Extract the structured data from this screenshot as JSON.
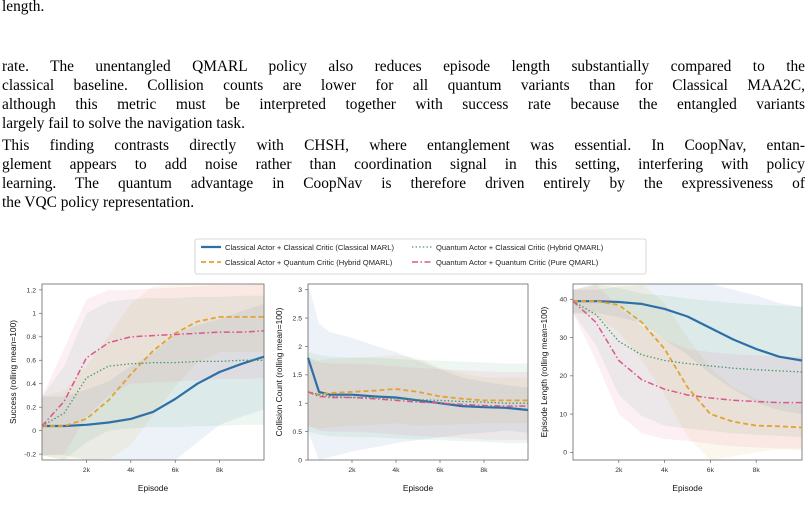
{
  "paragraphs": {
    "p0": [
      "length."
    ],
    "p1": [
      "rate. The unentangled QMARL policy also reduces episode length substantially compared to the",
      "classical baseline. Collision counts are lower for all quantum variants than for Classical MAA2C,",
      "although this metric must be interpreted together with success rate because the entangled variants",
      "largely fail to solve the navigation task."
    ],
    "p2": [
      "This finding contrasts directly with CHSH, where entanglement was essential. In CoopNav, entan-",
      "glement appears to add noise rather than coordination signal in this setting, interfering with policy",
      "learning. The quantum advantage in CoopNav is therefore driven entirely by the expressiveness of",
      "the VQC policy representation."
    ]
  },
  "legend": [
    {
      "label": "Classical Actor + Classical Critic (Classical MARL)",
      "color": "#2f6fa8",
      "dash": "solid"
    },
    {
      "label": "Classical Actor + Quantum Critic (Hybrid QMARL)",
      "color": "#e3a232",
      "dash": "dashed"
    },
    {
      "label": "Quantum Actor + Classical Critic (Hybrid QMARL)",
      "color": "#3f9a63",
      "dash": "dotted"
    },
    {
      "label": "Quantum Actor + Quantum Critic (Pure QMARL)",
      "color": "#d9588e",
      "dash": "dashdot"
    }
  ],
  "chart_data": [
    {
      "type": "line",
      "xlabel": "Episode",
      "ylabel": "Success (rolling mean=100)",
      "xlim": [
        0,
        10000
      ],
      "ylim": [
        -0.25,
        1.25
      ],
      "xticks": [
        2000,
        4000,
        6000,
        8000
      ],
      "xtick_labels": [
        "2k",
        "4k",
        "6k",
        "8k"
      ],
      "yticks": [
        -0.2,
        0,
        0.2,
        0.4,
        0.6,
        0.8,
        1,
        1.2
      ],
      "ytick_labels": [
        "-0.2",
        "0",
        "0.2",
        "0.4",
        "0.6",
        "0.8",
        "1",
        "1.2"
      ],
      "series": [
        {
          "name": "Classical Actor + Classical Critic (Classical MARL)",
          "x": [
            0,
            1000,
            2000,
            3000,
            4000,
            5000,
            6000,
            7000,
            8000,
            9000,
            10000
          ],
          "y": [
            0.04,
            0.04,
            0.05,
            0.07,
            0.1,
            0.16,
            0.27,
            0.4,
            0.5,
            0.57,
            0.63
          ],
          "band": [
            0.25,
            0.25,
            0.3,
            0.35,
            0.45,
            0.5,
            0.55,
            0.5,
            0.45,
            0.45,
            0.45
          ]
        },
        {
          "name": "Classical Actor + Quantum Critic (Hybrid QMARL)",
          "x": [
            0,
            1000,
            2000,
            3000,
            4000,
            5000,
            6000,
            7000,
            8000,
            9000,
            10000
          ],
          "y": [
            0.04,
            0.04,
            0.1,
            0.26,
            0.48,
            0.68,
            0.83,
            0.93,
            0.97,
            0.97,
            0.97
          ],
          "band": [
            0.25,
            0.3,
            0.45,
            0.55,
            0.6,
            0.55,
            0.45,
            0.35,
            0.3,
            0.3,
            0.3
          ]
        },
        {
          "name": "Quantum Actor + Classical Critic (Hybrid QMARL)",
          "x": [
            0,
            1000,
            2000,
            3000,
            4000,
            5000,
            6000,
            7000,
            8000,
            9000,
            10000
          ],
          "y": [
            0.04,
            0.15,
            0.45,
            0.55,
            0.57,
            0.58,
            0.58,
            0.59,
            0.59,
            0.6,
            0.6
          ],
          "band": [
            0.25,
            0.4,
            0.55,
            0.55,
            0.55,
            0.55,
            0.55,
            0.55,
            0.55,
            0.55,
            0.55
          ]
        },
        {
          "name": "Quantum Actor + Quantum Critic (Pure QMARL)",
          "x": [
            0,
            1000,
            2000,
            3000,
            4000,
            5000,
            6000,
            7000,
            8000,
            9000,
            10000
          ],
          "y": [
            0.04,
            0.25,
            0.62,
            0.75,
            0.8,
            0.81,
            0.82,
            0.83,
            0.84,
            0.84,
            0.85
          ],
          "band": [
            0.25,
            0.45,
            0.5,
            0.45,
            0.4,
            0.4,
            0.4,
            0.4,
            0.4,
            0.4,
            0.4
          ]
        }
      ]
    },
    {
      "type": "line",
      "xlabel": "Episode",
      "ylabel": "Collision Count (rolling mean=100)",
      "xlim": [
        0,
        10000
      ],
      "ylim": [
        0,
        3.1
      ],
      "xticks": [
        2000,
        4000,
        6000,
        8000
      ],
      "xtick_labels": [
        "2k",
        "4k",
        "6k",
        "8k"
      ],
      "yticks": [
        0,
        0.5,
        1,
        1.5,
        2,
        2.5,
        3
      ],
      "ytick_labels": [
        "0",
        "0.5",
        "1",
        "1.5",
        "2",
        "2.5",
        "3"
      ],
      "series": [
        {
          "name": "Classical Actor + Classical Critic (Classical MARL)",
          "x": [
            0,
            500,
            1000,
            2000,
            3000,
            4000,
            5000,
            6000,
            7000,
            8000,
            9000,
            10000
          ],
          "y": [
            1.8,
            1.2,
            1.15,
            1.15,
            1.12,
            1.1,
            1.05,
            1.0,
            0.95,
            0.93,
            0.92,
            0.88
          ],
          "band": [
            1.3,
            1.2,
            1.1,
            1.0,
            0.9,
            0.8,
            0.7,
            0.6,
            0.5,
            0.45,
            0.4,
            0.4
          ]
        },
        {
          "name": "Classical Actor + Quantum Critic (Hybrid QMARL)",
          "x": [
            0,
            500,
            1000,
            2000,
            3000,
            4000,
            5000,
            6000,
            7000,
            8000,
            9000,
            10000
          ],
          "y": [
            1.2,
            1.15,
            1.18,
            1.2,
            1.22,
            1.25,
            1.2,
            1.12,
            1.08,
            1.05,
            1.05,
            1.05
          ],
          "band": [
            0.6,
            0.6,
            0.6,
            0.6,
            0.6,
            0.6,
            0.6,
            0.5,
            0.45,
            0.4,
            0.4,
            0.4
          ]
        },
        {
          "name": "Quantum Actor + Classical Critic (Hybrid QMARL)",
          "x": [
            0,
            500,
            1000,
            2000,
            3000,
            4000,
            5000,
            6000,
            7000,
            8000,
            9000,
            10000
          ],
          "y": [
            1.2,
            1.15,
            1.12,
            1.1,
            1.1,
            1.08,
            1.06,
            1.05,
            1.03,
            1.02,
            1.0,
            1.0
          ],
          "band": [
            0.7,
            0.7,
            0.7,
            0.7,
            0.7,
            0.7,
            0.7,
            0.7,
            0.7,
            0.7,
            0.7,
            0.7
          ]
        },
        {
          "name": "Quantum Actor + Quantum Critic (Pure QMARL)",
          "x": [
            0,
            500,
            1000,
            2000,
            3000,
            4000,
            5000,
            6000,
            7000,
            8000,
            9000,
            10000
          ],
          "y": [
            1.2,
            1.12,
            1.1,
            1.1,
            1.08,
            1.05,
            1.02,
            1.0,
            0.98,
            0.96,
            0.95,
            0.95
          ],
          "band": [
            0.6,
            0.6,
            0.6,
            0.6,
            0.6,
            0.6,
            0.6,
            0.6,
            0.6,
            0.6,
            0.6,
            0.6
          ]
        }
      ]
    },
    {
      "type": "line",
      "xlabel": "Episode",
      "ylabel": "Episode Length (rolling mean=100)",
      "xlim": [
        0,
        10000
      ],
      "ylim": [
        -2,
        44
      ],
      "xticks": [
        2000,
        4000,
        6000,
        8000
      ],
      "xtick_labels": [
        "2k",
        "4k",
        "6k",
        "8k"
      ],
      "yticks": [
        0,
        10,
        20,
        30,
        40
      ],
      "ytick_labels": [
        "0",
        "10",
        "20",
        "30",
        "40"
      ],
      "series": [
        {
          "name": "Classical Actor + Classical Critic (Classical MARL)",
          "x": [
            0,
            1000,
            2000,
            3000,
            4000,
            5000,
            6000,
            7000,
            8000,
            9000,
            10000
          ],
          "y": [
            39.5,
            39.5,
            39.3,
            38.8,
            37.5,
            35.5,
            32.5,
            29.5,
            27,
            25,
            24
          ],
          "band": [
            3,
            3,
            4,
            5,
            8,
            10,
            12,
            13,
            14,
            14,
            14
          ]
        },
        {
          "name": "Classical Actor + Quantum Critic (Hybrid QMARL)",
          "x": [
            0,
            1000,
            2000,
            3000,
            4000,
            5000,
            6000,
            7000,
            8000,
            9000,
            10000
          ],
          "y": [
            39.5,
            39.5,
            38.5,
            34,
            27,
            17,
            10,
            8,
            7,
            6.8,
            6.5
          ],
          "band": [
            3,
            4,
            7,
            10,
            12,
            13,
            12,
            9,
            7,
            6,
            6
          ]
        },
        {
          "name": "Quantum Actor + Classical Critic (Hybrid QMARL)",
          "x": [
            0,
            1000,
            2000,
            3000,
            4000,
            5000,
            6000,
            7000,
            8000,
            9000,
            10000
          ],
          "y": [
            39.5,
            36,
            29,
            25.5,
            24,
            23.2,
            22.6,
            22,
            21.6,
            21.3,
            21
          ],
          "band": [
            3,
            8,
            14,
            16,
            17,
            17,
            17,
            17,
            17,
            17,
            17
          ]
        },
        {
          "name": "Quantum Actor + Quantum Critic (Pure QMARL)",
          "x": [
            0,
            1000,
            2000,
            3000,
            4000,
            5000,
            6000,
            7000,
            8000,
            9000,
            10000
          ],
          "y": [
            39.5,
            34,
            24,
            19,
            16.5,
            15,
            14.2,
            13.6,
            13.3,
            13,
            13
          ],
          "band": [
            3,
            10,
            14,
            14,
            13,
            12,
            12,
            12,
            12,
            12,
            12
          ]
        }
      ]
    }
  ]
}
